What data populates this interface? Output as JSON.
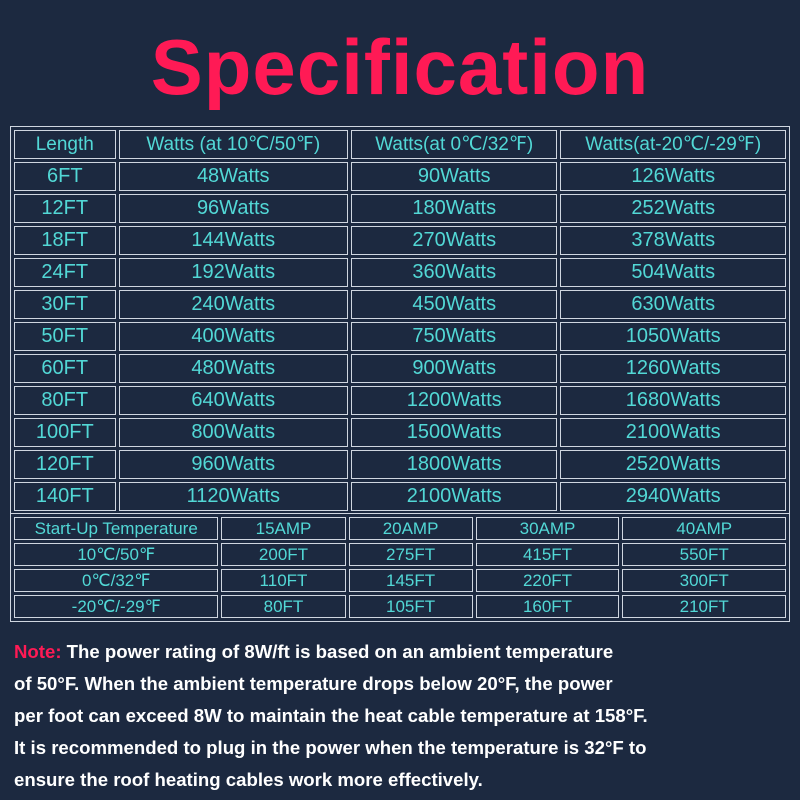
{
  "title": "Specification",
  "watts_table": {
    "headers": [
      "Length",
      "Watts (at 10℃/50℉)",
      "Watts(at 0℃/32℉)",
      "Watts(at-20℃/-29℉)"
    ],
    "rows": [
      [
        "6FT",
        "48Watts",
        "90Watts",
        "126Watts"
      ],
      [
        "12FT",
        "96Watts",
        "180Watts",
        "252Watts"
      ],
      [
        "18FT",
        "144Watts",
        "270Watts",
        "378Watts"
      ],
      [
        "24FT",
        "192Watts",
        "360Watts",
        "504Watts"
      ],
      [
        "30FT",
        "240Watts",
        "450Watts",
        "630Watts"
      ],
      [
        "50FT",
        "400Watts",
        "750Watts",
        "1050Watts"
      ],
      [
        "60FT",
        "480Watts",
        "900Watts",
        "1260Watts"
      ],
      [
        "80FT",
        "640Watts",
        "1200Watts",
        "1680Watts"
      ],
      [
        "100FT",
        "800Watts",
        "1500Watts",
        "2100Watts"
      ],
      [
        "120FT",
        "960Watts",
        "1800Watts",
        "2520Watts"
      ],
      [
        "140FT",
        "1120Watts",
        "2100Watts",
        "2940Watts"
      ]
    ]
  },
  "startup_table": {
    "headers": [
      "Start-Up Temperature",
      "15AMP",
      "20AMP",
      "30AMP",
      "40AMP"
    ],
    "rows": [
      [
        "10℃/50℉",
        "200FT",
        "275FT",
        "415FT",
        "550FT"
      ],
      [
        "0℃/32℉",
        "110FT",
        "145FT",
        "220FT",
        "300FT"
      ],
      [
        "-20℃/-29℉",
        "80FT",
        "105FT",
        "160FT",
        "210FT"
      ]
    ]
  },
  "note": {
    "label": "Note:",
    "lines": [
      " The power rating of 8W/ft is based on an ambient temperature",
      "of 50°F. When the ambient temperature drops below 20°F, the power",
      "per foot can exceed 8W to maintain the heat cable temperature at 158°F.",
      "It is recommended to plug in the power when the temperature is 32°F to",
      "ensure the roof heating cables work more effectively."
    ]
  },
  "colors": {
    "background": "#1c2940",
    "title": "#ff1a55",
    "table_text": "#52d8d6",
    "note_text": "#ffffff",
    "borders": "#cfd6e0"
  }
}
